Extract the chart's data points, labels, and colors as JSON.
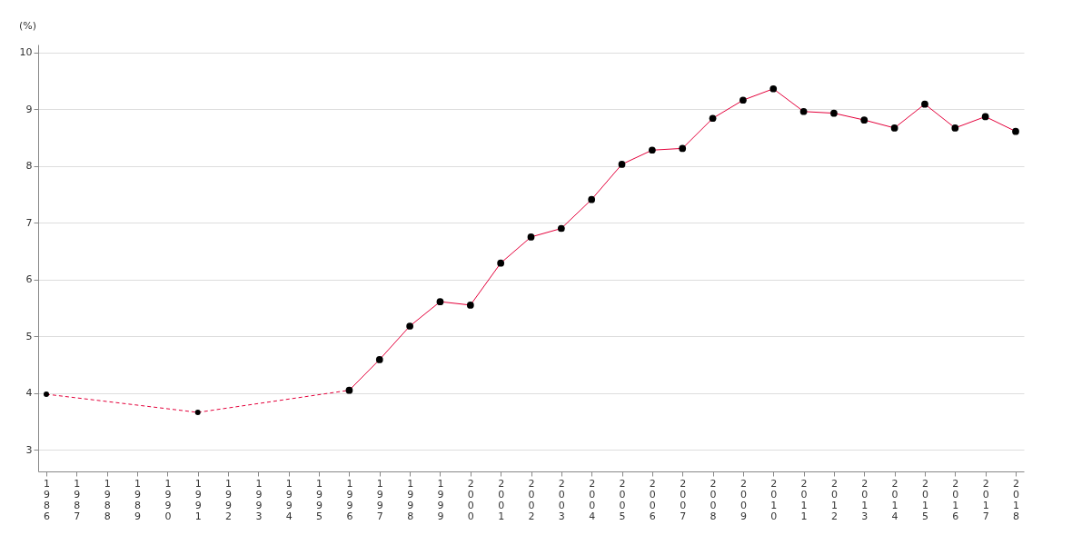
{
  "chart_data": {
    "type": "line",
    "ylabel": "(%)",
    "categories": [
      "1986",
      "1987",
      "1988",
      "1989",
      "1990",
      "1991",
      "1992",
      "1993",
      "1994",
      "1995",
      "1996",
      "1997",
      "1998",
      "1999",
      "2000",
      "2001",
      "2002",
      "2003",
      "2004",
      "2005",
      "2006",
      "2007",
      "2008",
      "2009",
      "2010",
      "2011",
      "2012",
      "2013",
      "2014",
      "2015",
      "2016",
      "2017",
      "2018"
    ],
    "series": [
      {
        "color": "#e4003a",
        "line_style": "dashed",
        "marker": "circle",
        "values": [
          3.98,
          null,
          null,
          null,
          null,
          3.66,
          null,
          null,
          null,
          null,
          4.05,
          null,
          null,
          null,
          null,
          null,
          null,
          null,
          null,
          null,
          null,
          null,
          null,
          null,
          null,
          null,
          null,
          null,
          null,
          null,
          null,
          null,
          null
        ]
      },
      {
        "color": "#e4003a",
        "line_style": "solid",
        "marker": "circle",
        "values": [
          null,
          null,
          null,
          null,
          null,
          null,
          null,
          null,
          null,
          null,
          4.05,
          4.59,
          5.18,
          5.61,
          5.55,
          6.29,
          6.75,
          6.9,
          7.41,
          8.03,
          8.28,
          8.31,
          8.84,
          9.16,
          9.36,
          8.96,
          8.93,
          8.81,
          8.67,
          9.09,
          8.67,
          8.87,
          8.61
        ]
      }
    ],
    "ylim": [
      2.62,
      10.14
    ],
    "yticks": [
      3,
      4,
      5,
      6,
      7,
      8,
      9,
      10
    ],
    "grid": "y"
  }
}
